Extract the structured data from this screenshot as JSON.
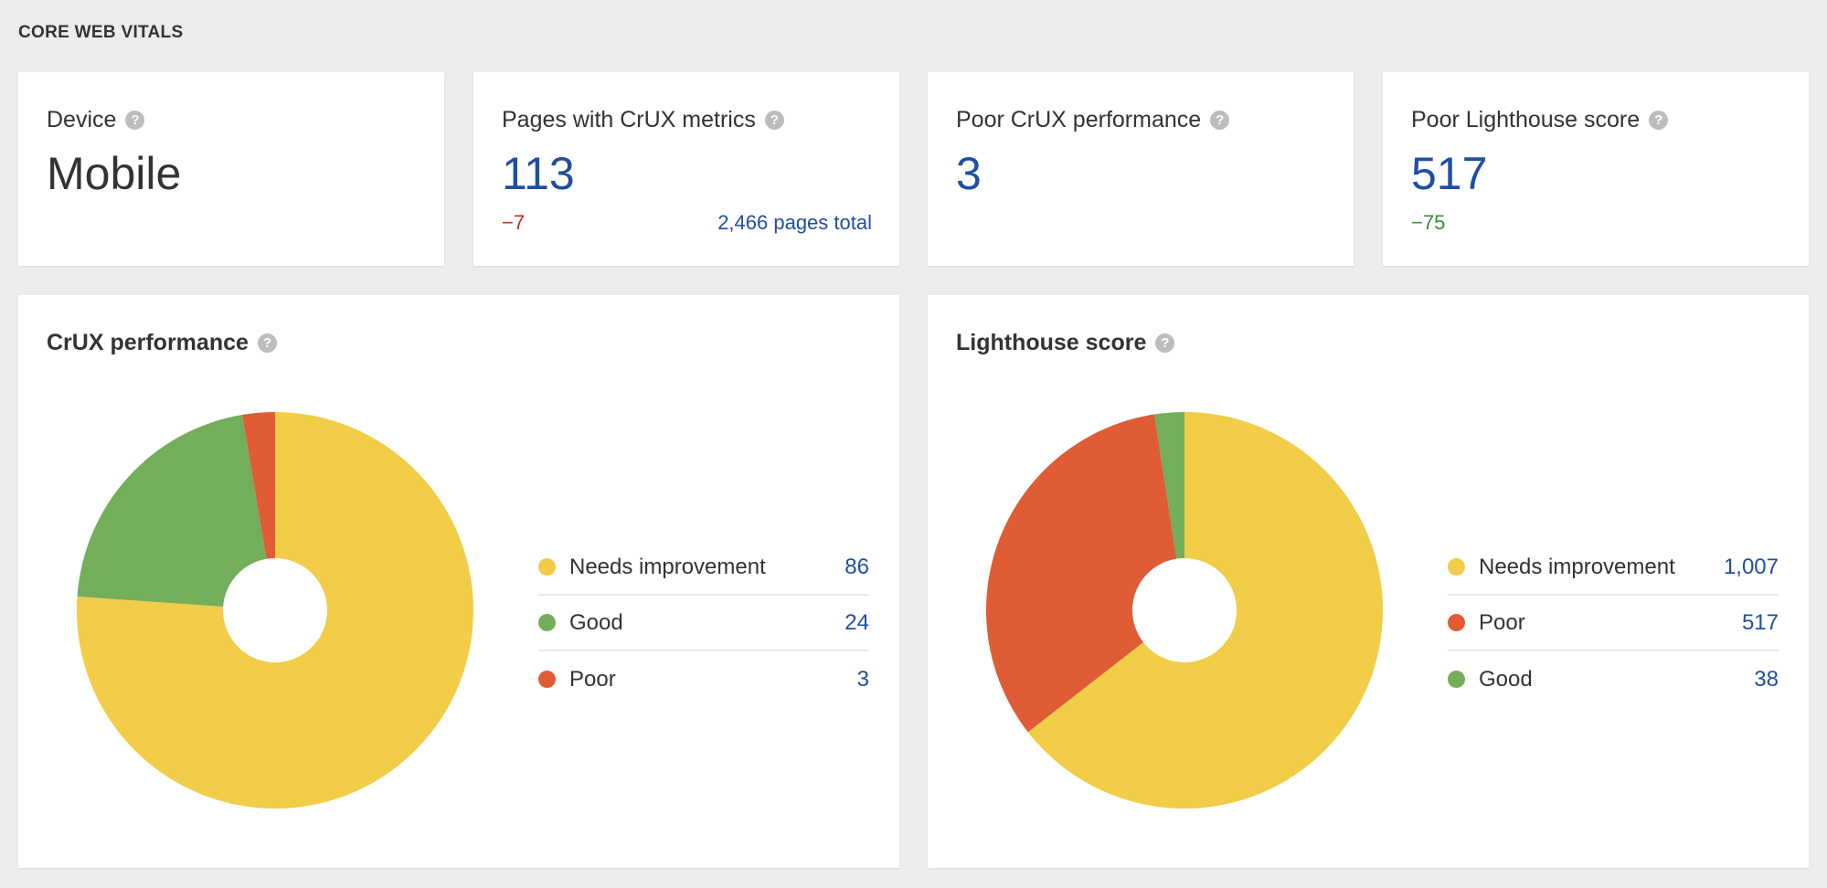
{
  "section_title": "CORE WEB VITALS",
  "stats": [
    {
      "label": "Device",
      "value": "Mobile"
    },
    {
      "label": "Pages with CrUX metrics",
      "value": "113",
      "delta": "−7",
      "total": "2,466 pages total"
    },
    {
      "label": "Poor CrUX performance",
      "value": "3"
    },
    {
      "label": "Poor Lighthouse score",
      "value": "517",
      "delta": "−75"
    }
  ],
  "help_glyph": "?",
  "colors": {
    "needs_improvement": "#f1cd48",
    "good": "#73ae5b",
    "poor": "#e05c35",
    "link": "#1f4fa0"
  },
  "chart_data": [
    {
      "type": "pie",
      "title": "CrUX performance",
      "donut": true,
      "legend": "right",
      "categories": [
        "Needs improvement",
        "Good",
        "Poor"
      ],
      "values": [
        86,
        24,
        3
      ],
      "labels": [
        "86",
        "24",
        "3"
      ],
      "colors": [
        "#f1cd48",
        "#73ae5b",
        "#e05c35"
      ]
    },
    {
      "type": "pie",
      "title": "Lighthouse score",
      "donut": true,
      "legend": "right",
      "categories": [
        "Needs improvement",
        "Poor",
        "Good"
      ],
      "values": [
        1007,
        517,
        38
      ],
      "labels": [
        "1,007",
        "517",
        "38"
      ],
      "colors": [
        "#f1cd48",
        "#e05c35",
        "#73ae5b"
      ]
    }
  ]
}
